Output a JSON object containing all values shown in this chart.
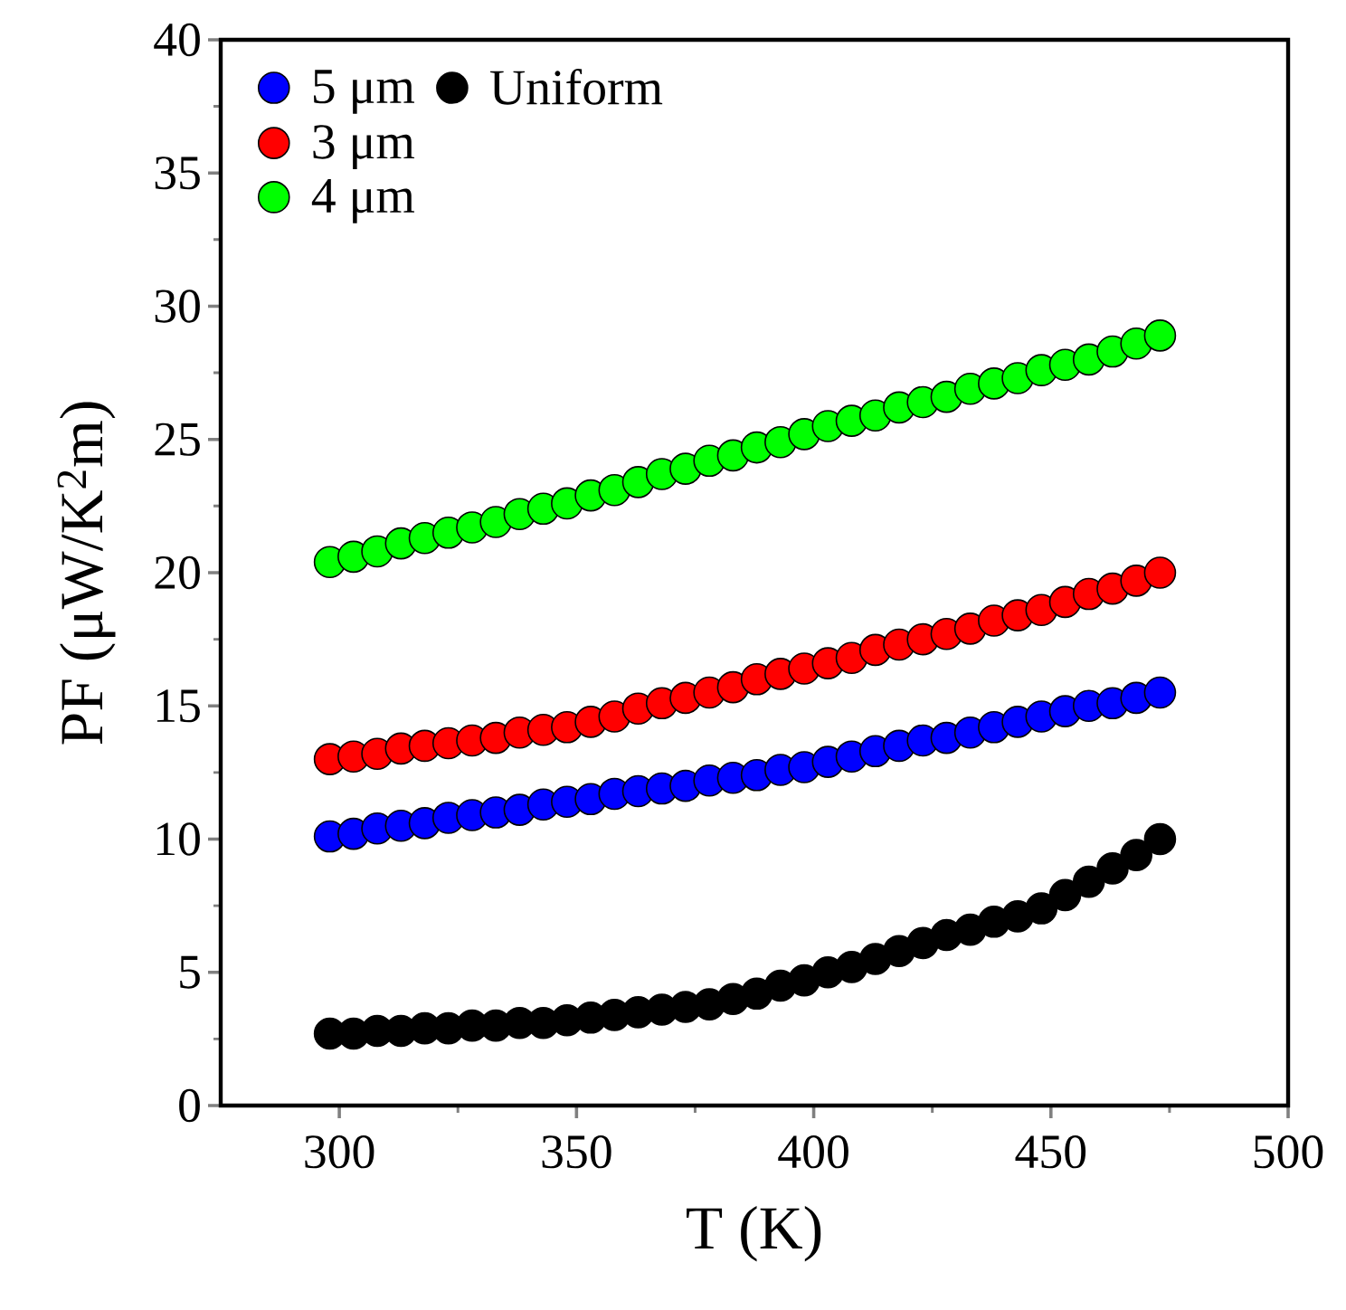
{
  "chart_data": {
    "type": "scatter",
    "xlabel": "T (K)",
    "ylabel": "PF (μW/K$^{2}$m)",
    "x": [
      298,
      303,
      308,
      313,
      318,
      323,
      328,
      333,
      338,
      343,
      348,
      353,
      358,
      363,
      368,
      373,
      378,
      383,
      388,
      393,
      398,
      403,
      408,
      413,
      418,
      423,
      428,
      433,
      438,
      443,
      448,
      453,
      458,
      463,
      468,
      473
    ],
    "series": [
      {
        "name": "5 μm",
        "color": "#0000ff",
        "values": [
          10.1,
          10.2,
          10.4,
          10.5,
          10.6,
          10.8,
          10.9,
          11.0,
          11.1,
          11.3,
          11.4,
          11.5,
          11.7,
          11.8,
          11.9,
          12.0,
          12.2,
          12.3,
          12.4,
          12.6,
          12.7,
          12.9,
          13.1,
          13.3,
          13.5,
          13.7,
          13.8,
          14.0,
          14.2,
          14.4,
          14.6,
          14.8,
          15.0,
          15.1,
          15.3,
          15.5
        ]
      },
      {
        "name": "3 μm",
        "color": "#ff0000",
        "values": [
          13.0,
          13.1,
          13.2,
          13.4,
          13.5,
          13.6,
          13.7,
          13.8,
          14.0,
          14.1,
          14.2,
          14.4,
          14.6,
          14.9,
          15.1,
          15.3,
          15.5,
          15.7,
          16.0,
          16.2,
          16.4,
          16.6,
          16.8,
          17.1,
          17.3,
          17.5,
          17.7,
          17.9,
          18.2,
          18.4,
          18.6,
          18.9,
          19.2,
          19.4,
          19.7,
          20.0
        ]
      },
      {
        "name": "4 μm",
        "color": "#00ff00",
        "values": [
          20.4,
          20.6,
          20.8,
          21.1,
          21.3,
          21.5,
          21.7,
          21.9,
          22.2,
          22.4,
          22.6,
          22.9,
          23.1,
          23.4,
          23.7,
          23.9,
          24.2,
          24.4,
          24.7,
          24.9,
          25.2,
          25.5,
          25.7,
          25.9,
          26.2,
          26.4,
          26.6,
          26.9,
          27.1,
          27.3,
          27.6,
          27.8,
          28.0,
          28.3,
          28.6,
          28.9
        ]
      },
      {
        "name": "Uniform",
        "color": "#000000",
        "values": [
          2.7,
          2.7,
          2.8,
          2.8,
          2.9,
          2.9,
          3.0,
          3.0,
          3.1,
          3.1,
          3.2,
          3.3,
          3.4,
          3.5,
          3.6,
          3.7,
          3.8,
          4.0,
          4.2,
          4.5,
          4.7,
          5.0,
          5.2,
          5.5,
          5.8,
          6.1,
          6.4,
          6.6,
          6.9,
          7.1,
          7.4,
          7.9,
          8.4,
          8.9,
          9.4,
          10.0
        ]
      }
    ],
    "xlim": [
      275,
      500
    ],
    "xticks": [
      300,
      350,
      400,
      450,
      500
    ],
    "ylim": [
      0,
      40
    ],
    "yticks": [
      0,
      5,
      10,
      15,
      20,
      25,
      30,
      35,
      40
    ],
    "legend": "top left",
    "marker": "circle"
  }
}
